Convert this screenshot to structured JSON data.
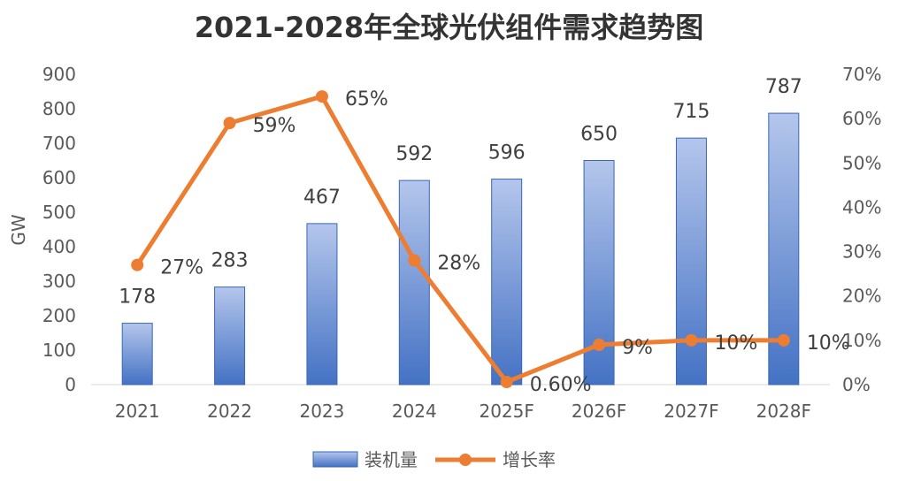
{
  "chart_data": {
    "type": "bar",
    "title": "2021-2028年全球光伏组件需求趋势图",
    "categories": [
      "2021",
      "2022",
      "2023",
      "2024",
      "2025F",
      "2026F",
      "2027F",
      "2028F"
    ],
    "ylabel": "GW",
    "ylim": [
      0,
      900
    ],
    "y_ticks": [
      "0",
      "100",
      "200",
      "300",
      "400",
      "500",
      "600",
      "700",
      "800",
      "900"
    ],
    "y2lim": [
      0,
      70
    ],
    "y2_ticks": [
      "0%",
      "10%",
      "20%",
      "30%",
      "40%",
      "50%",
      "60%",
      "70%"
    ],
    "grid": false,
    "legend_position": "bottom",
    "series": [
      {
        "name": "装机量",
        "type": "bar",
        "axis": "left",
        "values": [
          178,
          283,
          467,
          592,
          596,
          650,
          715,
          787
        ],
        "labels": [
          "178",
          "283",
          "467",
          "592",
          "596",
          "650",
          "715",
          "787"
        ]
      },
      {
        "name": "增长率",
        "type": "line",
        "axis": "right",
        "values": [
          27,
          59,
          65,
          28,
          0.6,
          9,
          10,
          10
        ],
        "labels": [
          "27%",
          "59%",
          "65%",
          "28%",
          "0.60%",
          "9%",
          "10%",
          "10%"
        ]
      }
    ],
    "colors": {
      "bar_top": "#b4c6ec",
      "bar_bottom": "#4472c4",
      "bar_border": "#3a66b8",
      "line": "#ed7d31",
      "text": "#595959",
      "title": "#333333"
    }
  }
}
